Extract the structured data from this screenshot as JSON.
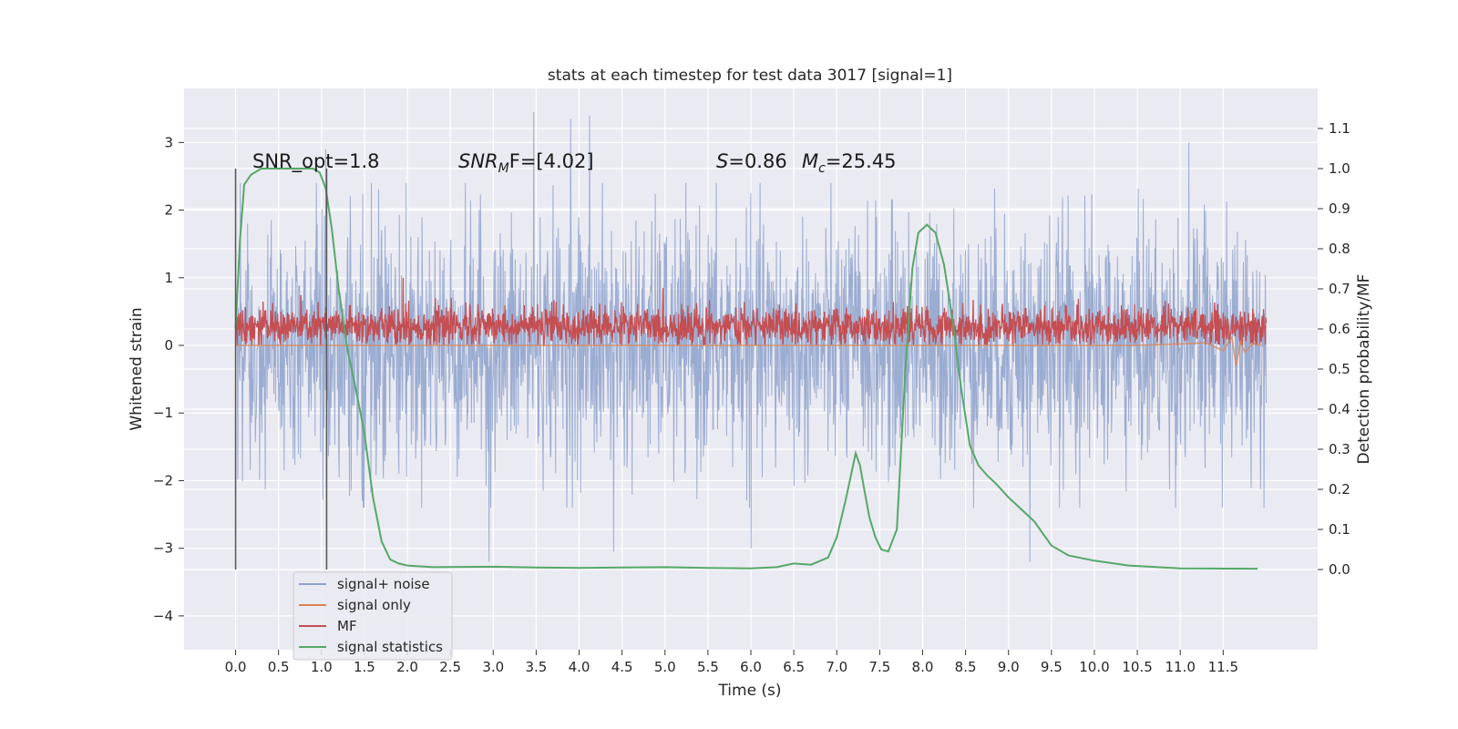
{
  "chart_data": {
    "type": "line",
    "title": "stats at each timestep for test data 3017 [signal=1]",
    "xlabel": "Time (s)",
    "ylabel": "Whitened strain",
    "ylabel_right": "Detection probability/MF",
    "xlim": [
      -0.6,
      12.6
    ],
    "ylim": [
      -4.5,
      3.8
    ],
    "ylim_right": [
      -0.2,
      1.2
    ],
    "x_ticks": [
      "0.0",
      "0.5",
      "1.0",
      "1.5",
      "2.0",
      "2.5",
      "3.0",
      "3.5",
      "4.0",
      "4.5",
      "5.0",
      "5.5",
      "6.0",
      "6.5",
      "7.0",
      "7.5",
      "8.0",
      "8.5",
      "9.0",
      "9.5",
      "10.0",
      "10.5",
      "11.0",
      "11.5"
    ],
    "y_ticks_left": [
      "3",
      "2",
      "1",
      "0",
      "−1",
      "−2",
      "−3",
      "−4"
    ],
    "y_ticks_right": [
      "1.1",
      "1.0",
      "0.9",
      "0.8",
      "0.7",
      "0.6",
      "0.5",
      "0.4",
      "0.3",
      "0.2",
      "0.1",
      "0.0"
    ],
    "grid": true,
    "legend_position": "lower-left",
    "annotations": {
      "snr_opt": "SNR_opt=1.8",
      "snr_mf_main": "SNR",
      "snr_mf_sub": "M",
      "snr_mf_tail": "F=[4.02]",
      "s_label": "S",
      "s_value": "=0.86",
      "mc_main": "M",
      "mc_sub": "c",
      "mc_value": "=25.45"
    },
    "vertical_markers": [
      0.0,
      1.06
    ],
    "series": [
      {
        "name": "signal+ noise",
        "color": "#8da1cb",
        "axis": "left",
        "t_end": 12.0,
        "typical_range": [
          -1.3,
          1.3
        ],
        "peaks": [
          {
            "t": 3.47,
            "value": 3.45
          },
          {
            "t": 3.9,
            "value": 3.35
          },
          {
            "t": 4.12,
            "value": 3.4
          },
          {
            "t": 11.1,
            "value": 3.0
          },
          {
            "t": 1.05,
            "value": 2.9
          },
          {
            "t": 2.95,
            "value": -3.2
          },
          {
            "t": 4.4,
            "value": -3.05
          },
          {
            "t": 6.0,
            "value": -3.0
          },
          {
            "t": 9.25,
            "value": -3.2
          }
        ]
      },
      {
        "name": "signal only",
        "color": "#dd8452",
        "axis": "left",
        "t": [
          0.0,
          10.5,
          11.0,
          11.3,
          11.5,
          11.6,
          11.65,
          11.7,
          11.75,
          11.85,
          11.95
        ],
        "values": [
          0.0,
          0.0,
          0.02,
          0.04,
          -0.08,
          0.12,
          -0.3,
          0.05,
          -0.1,
          0.03,
          0.0
        ]
      },
      {
        "name": "MF",
        "color": "#c44e52",
        "axis": "left",
        "t_end": 12.0,
        "baseline": 0.0,
        "typical_range": [
          0.0,
          0.72
        ],
        "peak": 1.0
      },
      {
        "name": "signal statistics",
        "color": "#55a868",
        "axis": "right",
        "t": [
          0.0,
          0.05,
          0.1,
          0.18,
          0.3,
          0.6,
          0.9,
          0.98,
          1.05,
          1.12,
          1.2,
          1.3,
          1.4,
          1.5,
          1.6,
          1.7,
          1.8,
          1.9,
          2.0,
          2.3,
          3.0,
          3.5,
          4.0,
          4.5,
          5.0,
          5.5,
          6.0,
          6.3,
          6.5,
          6.7,
          6.9,
          7.0,
          7.1,
          7.17,
          7.22,
          7.27,
          7.32,
          7.38,
          7.45,
          7.52,
          7.6,
          7.7,
          7.8,
          7.88,
          7.95,
          8.05,
          8.15,
          8.25,
          8.35,
          8.45,
          8.55,
          8.65,
          8.75,
          8.85,
          9.0,
          9.1,
          9.2,
          9.3,
          9.4,
          9.5,
          9.7,
          10.0,
          10.4,
          11.0,
          11.9
        ],
        "values": [
          0.6,
          0.82,
          0.96,
          0.985,
          1.0,
          1.0,
          1.0,
          0.99,
          0.95,
          0.85,
          0.7,
          0.55,
          0.45,
          0.34,
          0.18,
          0.07,
          0.025,
          0.015,
          0.01,
          0.006,
          0.007,
          0.005,
          0.004,
          0.005,
          0.006,
          0.004,
          0.003,
          0.006,
          0.015,
          0.012,
          0.03,
          0.08,
          0.17,
          0.24,
          0.29,
          0.26,
          0.2,
          0.13,
          0.08,
          0.05,
          0.045,
          0.1,
          0.5,
          0.75,
          0.84,
          0.86,
          0.84,
          0.76,
          0.62,
          0.45,
          0.31,
          0.26,
          0.235,
          0.215,
          0.18,
          0.16,
          0.14,
          0.12,
          0.09,
          0.06,
          0.035,
          0.022,
          0.01,
          0.003,
          0.002
        ]
      }
    ]
  }
}
